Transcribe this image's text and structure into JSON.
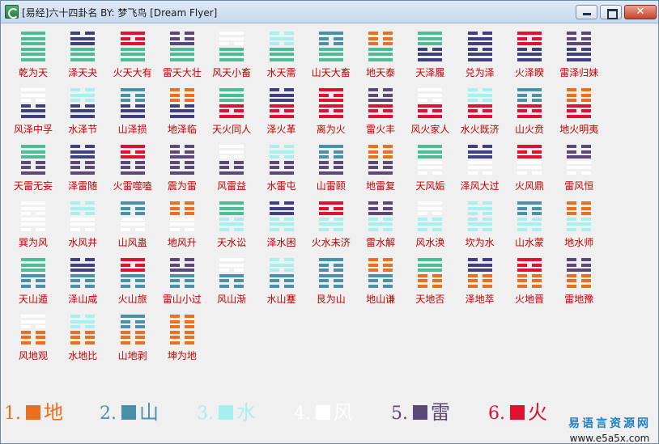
{
  "window": {
    "title": "[易经]六十四卦名   BY: 梦飞鸟  [Dream Flyer]",
    "close_label": "✕"
  },
  "trigram_colors": {
    "地": "#e8701e",
    "山": "#4a90a8",
    "水": "#a8f0f0",
    "风": "#ffffff",
    "雷": "#5c4878",
    "火": "#e01030",
    "天": "#4cbc96",
    "泽": "#404080"
  },
  "hexagrams": [
    {
      "name": "乾为天",
      "upper": "天",
      "lower": "天"
    },
    {
      "name": "泽天夬",
      "upper": "泽",
      "lower": "天"
    },
    {
      "name": "火天大有",
      "upper": "火",
      "lower": "天"
    },
    {
      "name": "雷天大壮",
      "upper": "雷",
      "lower": "天"
    },
    {
      "name": "风天小畜",
      "upper": "风",
      "lower": "天"
    },
    {
      "name": "水天需",
      "upper": "水",
      "lower": "天"
    },
    {
      "name": "山天大畜",
      "upper": "山",
      "lower": "天"
    },
    {
      "name": "地天泰",
      "upper": "地",
      "lower": "天"
    },
    {
      "name": "天泽履",
      "upper": "天",
      "lower": "泽"
    },
    {
      "name": "兑为泽",
      "upper": "泽",
      "lower": "泽"
    },
    {
      "name": "火泽睽",
      "upper": "火",
      "lower": "泽"
    },
    {
      "name": "雷泽归妹",
      "upper": "雷",
      "lower": "泽"
    },
    {
      "name": "风泽中孚",
      "upper": "风",
      "lower": "泽"
    },
    {
      "name": "水泽节",
      "upper": "水",
      "lower": "泽"
    },
    {
      "name": "山泽损",
      "upper": "山",
      "lower": "泽"
    },
    {
      "name": "地泽临",
      "upper": "地",
      "lower": "泽"
    },
    {
      "name": "天火同人",
      "upper": "天",
      "lower": "火"
    },
    {
      "name": "泽火革",
      "upper": "泽",
      "lower": "火"
    },
    {
      "name": "离为火",
      "upper": "火",
      "lower": "火"
    },
    {
      "name": "雷火丰",
      "upper": "雷",
      "lower": "火"
    },
    {
      "name": "风火家人",
      "upper": "风",
      "lower": "火"
    },
    {
      "name": "水火既济",
      "upper": "水",
      "lower": "火"
    },
    {
      "name": "山火贲",
      "upper": "山",
      "lower": "火"
    },
    {
      "name": "地火明夷",
      "upper": "地",
      "lower": "火"
    },
    {
      "name": "天雷无妄",
      "upper": "天",
      "lower": "雷"
    },
    {
      "name": "泽雷随",
      "upper": "泽",
      "lower": "雷"
    },
    {
      "name": "火雷噬嗑",
      "upper": "火",
      "lower": "雷"
    },
    {
      "name": "震为雷",
      "upper": "雷",
      "lower": "雷"
    },
    {
      "name": "风雷益",
      "upper": "风",
      "lower": "雷"
    },
    {
      "name": "水雷屯",
      "upper": "水",
      "lower": "雷"
    },
    {
      "name": "山雷颐",
      "upper": "山",
      "lower": "雷"
    },
    {
      "name": "地雷复",
      "upper": "地",
      "lower": "雷"
    },
    {
      "name": "天风姤",
      "upper": "天",
      "lower": "风"
    },
    {
      "name": "泽风大过",
      "upper": "泽",
      "lower": "风"
    },
    {
      "name": "火风鼎",
      "upper": "火",
      "lower": "风"
    },
    {
      "name": "雷风恒",
      "upper": "雷",
      "lower": "风"
    },
    {
      "name": "巽为风",
      "upper": "风",
      "lower": "风"
    },
    {
      "name": "水风井",
      "upper": "水",
      "lower": "风"
    },
    {
      "name": "山风蛊",
      "upper": "山",
      "lower": "风"
    },
    {
      "name": "地风升",
      "upper": "地",
      "lower": "风"
    },
    {
      "name": "天水讼",
      "upper": "天",
      "lower": "水"
    },
    {
      "name": "泽水困",
      "upper": "泽",
      "lower": "水"
    },
    {
      "name": "火水未济",
      "upper": "火",
      "lower": "水"
    },
    {
      "name": "雷水解",
      "upper": "雷",
      "lower": "水"
    },
    {
      "name": "风水涣",
      "upper": "风",
      "lower": "水"
    },
    {
      "name": "坎为水",
      "upper": "水",
      "lower": "水"
    },
    {
      "name": "山水蒙",
      "upper": "山",
      "lower": "水"
    },
    {
      "name": "地水师",
      "upper": "地",
      "lower": "水"
    },
    {
      "name": "天山遁",
      "upper": "天",
      "lower": "山"
    },
    {
      "name": "泽山咸",
      "upper": "泽",
      "lower": "山"
    },
    {
      "name": "火山旅",
      "upper": "火",
      "lower": "山"
    },
    {
      "name": "雷山小过",
      "upper": "雷",
      "lower": "山"
    },
    {
      "name": "风山渐",
      "upper": "风",
      "lower": "山"
    },
    {
      "name": "水山蹇",
      "upper": "水",
      "lower": "山"
    },
    {
      "name": "艮为山",
      "upper": "山",
      "lower": "山"
    },
    {
      "name": "地山谦",
      "upper": "地",
      "lower": "山"
    },
    {
      "name": "天地否",
      "upper": "天",
      "lower": "地"
    },
    {
      "name": "泽地萃",
      "upper": "泽",
      "lower": "地"
    },
    {
      "name": "火地晋",
      "upper": "火",
      "lower": "地"
    },
    {
      "name": "雷地豫",
      "upper": "雷",
      "lower": "地"
    },
    {
      "name": "风地观",
      "upper": "风",
      "lower": "地"
    },
    {
      "name": "水地比",
      "upper": "水",
      "lower": "地"
    },
    {
      "name": "山地剥",
      "upper": "山",
      "lower": "地"
    },
    {
      "name": "坤为地",
      "upper": "地",
      "lower": "地"
    }
  ],
  "legend": [
    {
      "num": "1.",
      "label": "地",
      "color": "#e8701e"
    },
    {
      "num": "2.",
      "label": "山",
      "color": "#4a90a8"
    },
    {
      "num": "3.",
      "label": "水",
      "color": "#a8f0f0"
    },
    {
      "num": "4.",
      "label": "风",
      "color": "#ffffff"
    },
    {
      "num": "5.",
      "label": "雷",
      "color": "#5c4878"
    },
    {
      "num": "6.",
      "label": "火",
      "color": "#e01030"
    }
  ],
  "watermark": {
    "site_name": "易语言资源网",
    "url": "www.e5a5x.com"
  }
}
